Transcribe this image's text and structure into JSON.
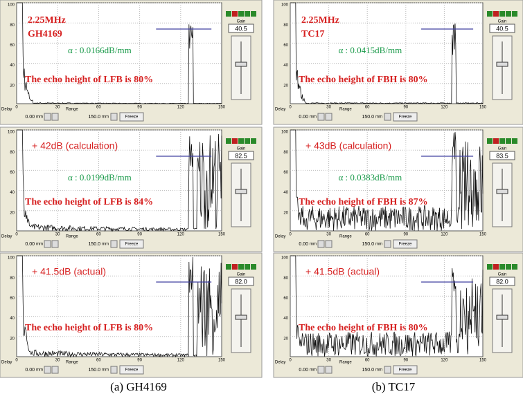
{
  "common": {
    "y_ticks": [
      "100",
      "80",
      "60",
      "40",
      "20"
    ],
    "x_ticks": [
      "0",
      "30",
      "60",
      "90",
      "120",
      "150"
    ],
    "delay_label": "Delay",
    "range_label": "Range",
    "delay": "0.00",
    "range": "150.0",
    "unit": "mm",
    "freeze": "Freeze",
    "gain_label": "Gain"
  },
  "panels": [
    {
      "frequency": "2.25MHz",
      "material": "GH4169",
      "alpha": "α : 0.0166dB/mm",
      "echo": "The echo height of LFB is 80%",
      "gain": "40.5"
    },
    {
      "frequency": "2.25MHz",
      "material": "TC17",
      "alpha": "α : 0.0415dB/mm",
      "echo": "The echo height of FBH is 80%",
      "gain": "40.5"
    },
    {
      "gain_change": "+ 42dB  (calculation)",
      "alpha": "α : 0.0199dB/mm",
      "echo": "The echo height of LFB is 84%",
      "gain": "82.5"
    },
    {
      "gain_change": "+ 43dB  (calculation)",
      "alpha": "α : 0.0383dB/mm",
      "echo": "The echo height of FBH is 87%",
      "gain": "83.5"
    },
    {
      "gain_change": "+ 41.5dB  (actual)",
      "echo": "The echo height of LFB is 80%",
      "gain": "82.0"
    },
    {
      "gain_change": "+ 41.5dB  (actual)",
      "echo": "The echo height of FBH is 80%",
      "gain": "82.0"
    }
  ],
  "captions": [
    "(a)  GH4169",
    "(b) TC17"
  ]
}
